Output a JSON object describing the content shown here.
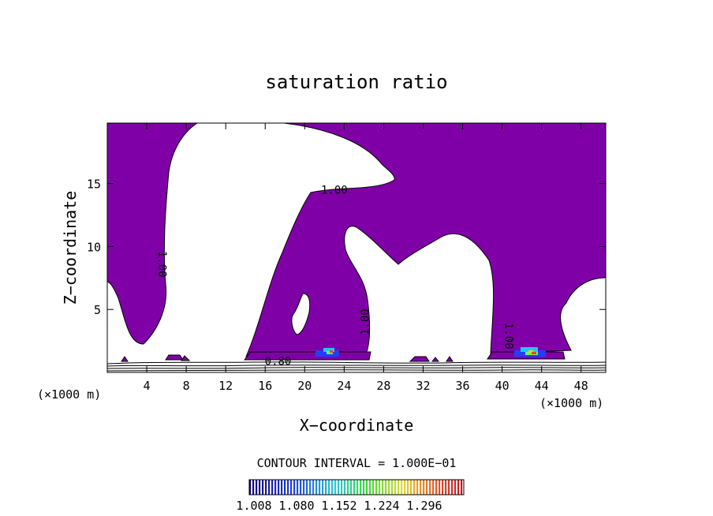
{
  "chart_data": {
    "type": "contour",
    "title": "saturation ratio",
    "xlabel": "X−coordinate",
    "ylabel": "Z−coordinate",
    "x_unit_left": "(×1000 m)",
    "x_unit_right": "(×1000 m)",
    "xlim": [
      0,
      50.5
    ],
    "ylim": [
      0,
      19.8
    ],
    "x_ticks": [
      4,
      8,
      12,
      16,
      20,
      24,
      28,
      32,
      36,
      40,
      44,
      48
    ],
    "y_ticks": [
      5,
      10,
      15
    ],
    "contour_interval_label": "CONTOUR INTERVAL = 1.000E−01",
    "colorbar_ticks": [
      "1.008",
      "1.080",
      "1.152",
      "1.224",
      "1.296"
    ],
    "contour_labels": [
      {
        "text": "1.00",
        "x": 23.0,
        "z": 14.2,
        "rotate": 0
      },
      {
        "text": "1.00",
        "x": 5.2,
        "z": 8.6,
        "rotate": 90
      },
      {
        "text": "1.00",
        "x": 26.5,
        "z": 4.0,
        "rotate": -90
      },
      {
        "text": "1.00",
        "x": 40.3,
        "z": 2.9,
        "rotate": 90
      },
      {
        "text": "0.80",
        "x": 17.3,
        "z": 0.6,
        "rotate": 0
      }
    ],
    "fill_color": "#8000a8",
    "contour_color": "#000000"
  }
}
